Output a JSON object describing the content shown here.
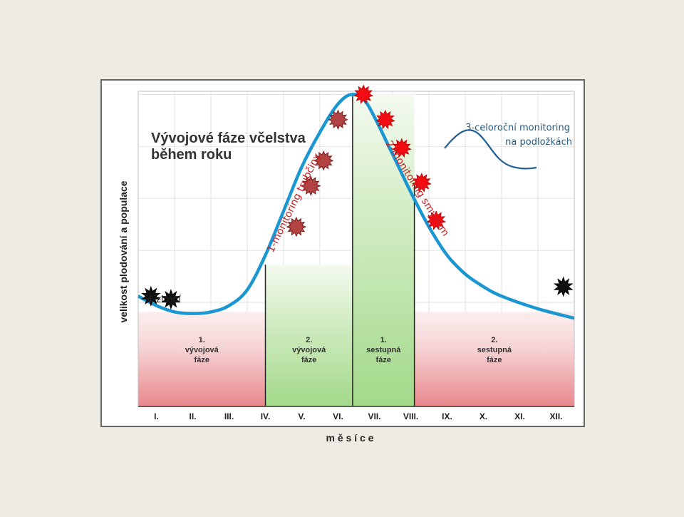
{
  "colors": {
    "background": "#eeebe3",
    "curve": "#1a96d2",
    "phase_red": "#e98a8e",
    "phase_green": "#a6d88c",
    "marker_dark": "#b34242",
    "marker_red": "#f20d12",
    "marker_black": "#111111",
    "annotation_red": "#c41e22",
    "annotation_blue": "#2a5a80"
  },
  "chart_data": {
    "type": "line",
    "title": "Vývojové fáze včelstva během roku",
    "title_lines": [
      "Vývojové fáze včelstva",
      "během roku"
    ],
    "xlabel": "m ě s í c e",
    "ylabel": "velikost plodování a populace",
    "categories": [
      "I.",
      "II.",
      "III.",
      "IV.",
      "V.",
      "VI.",
      "VII.",
      "VIII.",
      "IX.",
      "X.",
      "XI.",
      "XII."
    ],
    "xlim": [
      0,
      12
    ],
    "ylim": [
      0,
      100
    ],
    "grid": true,
    "series": [
      {
        "x": [
          0,
          0.5,
          1,
          1.5,
          2,
          2.5,
          3,
          3.5,
          4,
          4.5,
          5,
          5.5,
          5.9,
          6.3,
          7,
          7.5,
          8,
          8.5,
          9,
          9.5,
          10,
          11,
          12
        ],
        "values": [
          35,
          32,
          30,
          29.5,
          30,
          32,
          37,
          48,
          62,
          76,
          87,
          96,
          99,
          96,
          80,
          68,
          57,
          48,
          42,
          38,
          35,
          31,
          28
        ]
      }
    ],
    "phases": [
      {
        "label_lines": [
          "1.",
          "vývojová",
          "fáze"
        ],
        "x_start": 0,
        "x_end": 3.5,
        "top": 30,
        "color": "red"
      },
      {
        "label_lines": [
          "2.",
          "vývojová",
          "fáze"
        ],
        "x_start": 3.5,
        "x_end": 5.9,
        "top": 45,
        "color": "green"
      },
      {
        "label_lines": [
          "1.",
          "sestupná",
          "fáze"
        ],
        "x_start": 5.9,
        "x_end": 7.6,
        "top": 99,
        "color": "green"
      },
      {
        "label_lines": [
          "2.",
          "sestupná",
          "fáze"
        ],
        "x_start": 7.6,
        "x_end": 12,
        "top": 30,
        "color": "red"
      }
    ],
    "dividers": [
      {
        "x": 3.5,
        "top": 45
      },
      {
        "x": 5.9,
        "top": 99
      },
      {
        "x": 7.6,
        "top": 71
      }
    ],
    "markers": [
      {
        "x": 4.35,
        "y": 57,
        "kind": "dark"
      },
      {
        "x": 4.75,
        "y": 70,
        "kind": "dark"
      },
      {
        "x": 5.1,
        "y": 78,
        "kind": "dark"
      },
      {
        "x": 5.5,
        "y": 91,
        "kind": "dark"
      },
      {
        "x": 6.2,
        "y": 99,
        "kind": "red"
      },
      {
        "x": 6.8,
        "y": 91,
        "kind": "red"
      },
      {
        "x": 7.25,
        "y": 82,
        "kind": "red"
      },
      {
        "x": 7.8,
        "y": 71,
        "kind": "red"
      },
      {
        "x": 8.2,
        "y": 59,
        "kind": "red"
      },
      {
        "x": 0.35,
        "y": 35,
        "kind": "black"
      },
      {
        "x": 0.9,
        "y": 34,
        "kind": "black"
      },
      {
        "x": 11.7,
        "y": 38,
        "kind": "black"
      }
    ],
    "annotations": {
      "trubciny": "1-monitoring trubčiny",
      "smyvem": "2-monitoring smyvem",
      "celorocni_line1": "3-celoroční monitoring",
      "celorocni_line2": "na podložkách",
      "zimni": "4-zimní"
    }
  }
}
